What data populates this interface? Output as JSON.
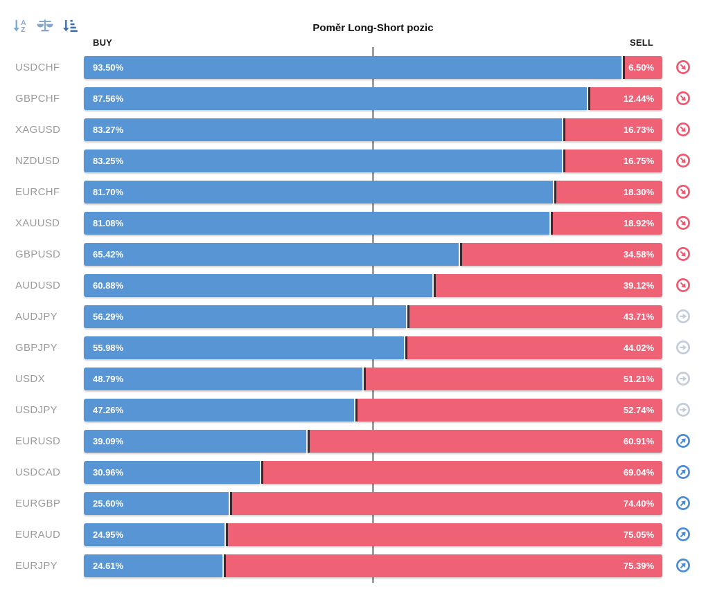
{
  "title": "Poměr Long-Short pozic",
  "columns": {
    "buy": "BUY",
    "sell": "SELL"
  },
  "toolbar": {
    "icons": [
      {
        "name": "sort-alphabetical-icon",
        "state": "inactive"
      },
      {
        "name": "balance-scale-icon",
        "state": "inactive"
      },
      {
        "name": "sort-amount-icon",
        "state": "active"
      }
    ]
  },
  "colors": {
    "buy_bar": "#5795d5",
    "sell_bar": "#ef6276",
    "boundary_marker": "#3a2c31",
    "center_line": "#9e9e9e",
    "pair_label": "#9b9b9b",
    "signal_sell": "#f0586f",
    "signal_neutral": "#c3cdd9",
    "signal_buy": "#4a8bd5"
  },
  "rows": [
    {
      "pair": "USDCHF",
      "buy": 93.5,
      "sell": 6.5,
      "buy_label": "93.50%",
      "sell_label": "6.50%",
      "signal": "sell"
    },
    {
      "pair": "GBPCHF",
      "buy": 87.56,
      "sell": 12.44,
      "buy_label": "87.56%",
      "sell_label": "12.44%",
      "signal": "sell"
    },
    {
      "pair": "XAGUSD",
      "buy": 83.27,
      "sell": 16.73,
      "buy_label": "83.27%",
      "sell_label": "16.73%",
      "signal": "sell"
    },
    {
      "pair": "NZDUSD",
      "buy": 83.25,
      "sell": 16.75,
      "buy_label": "83.25%",
      "sell_label": "16.75%",
      "signal": "sell"
    },
    {
      "pair": "EURCHF",
      "buy": 81.7,
      "sell": 18.3,
      "buy_label": "81.70%",
      "sell_label": "18.30%",
      "signal": "sell"
    },
    {
      "pair": "XAUUSD",
      "buy": 81.08,
      "sell": 18.92,
      "buy_label": "81.08%",
      "sell_label": "18.92%",
      "signal": "sell"
    },
    {
      "pair": "GBPUSD",
      "buy": 65.42,
      "sell": 34.58,
      "buy_label": "65.42%",
      "sell_label": "34.58%",
      "signal": "sell"
    },
    {
      "pair": "AUDUSD",
      "buy": 60.88,
      "sell": 39.12,
      "buy_label": "60.88%",
      "sell_label": "39.12%",
      "signal": "sell"
    },
    {
      "pair": "AUDJPY",
      "buy": 56.29,
      "sell": 43.71,
      "buy_label": "56.29%",
      "sell_label": "43.71%",
      "signal": "neutral"
    },
    {
      "pair": "GBPJPY",
      "buy": 55.98,
      "sell": 44.02,
      "buy_label": "55.98%",
      "sell_label": "44.02%",
      "signal": "neutral"
    },
    {
      "pair": "USDX",
      "buy": 48.79,
      "sell": 51.21,
      "buy_label": "48.79%",
      "sell_label": "51.21%",
      "signal": "neutral"
    },
    {
      "pair": "USDJPY",
      "buy": 47.26,
      "sell": 52.74,
      "buy_label": "47.26%",
      "sell_label": "52.74%",
      "signal": "neutral"
    },
    {
      "pair": "EURUSD",
      "buy": 39.09,
      "sell": 60.91,
      "buy_label": "39.09%",
      "sell_label": "60.91%",
      "signal": "buy"
    },
    {
      "pair": "USDCAD",
      "buy": 30.96,
      "sell": 69.04,
      "buy_label": "30.96%",
      "sell_label": "69.04%",
      "signal": "buy"
    },
    {
      "pair": "EURGBP",
      "buy": 25.6,
      "sell": 74.4,
      "buy_label": "25.60%",
      "sell_label": "74.40%",
      "signal": "buy"
    },
    {
      "pair": "EURAUD",
      "buy": 24.95,
      "sell": 75.05,
      "buy_label": "24.95%",
      "sell_label": "75.05%",
      "signal": "buy"
    },
    {
      "pair": "EURJPY",
      "buy": 24.61,
      "sell": 75.39,
      "buy_label": "24.61%",
      "sell_label": "75.39%",
      "signal": "buy"
    }
  ],
  "chart_data": {
    "type": "bar",
    "orientation": "horizontal-stacked",
    "title": "Poměr Long-Short pozic",
    "categories": [
      "USDCHF",
      "GBPCHF",
      "XAGUSD",
      "NZDUSD",
      "EURCHF",
      "XAUUSD",
      "GBPUSD",
      "AUDUSD",
      "AUDJPY",
      "GBPJPY",
      "USDX",
      "USDJPY",
      "EURUSD",
      "USDCAD",
      "EURGBP",
      "EURAUD",
      "EURJPY"
    ],
    "series": [
      {
        "name": "BUY",
        "color": "#5795d5",
        "values": [
          93.5,
          87.56,
          83.27,
          83.25,
          81.7,
          81.08,
          65.42,
          60.88,
          56.29,
          55.98,
          48.79,
          47.26,
          39.09,
          30.96,
          25.6,
          24.95,
          24.61
        ]
      },
      {
        "name": "SELL",
        "color": "#ef6276",
        "values": [
          6.5,
          12.44,
          16.73,
          16.75,
          18.3,
          18.92,
          34.58,
          39.12,
          43.71,
          44.02,
          51.21,
          52.74,
          60.91,
          69.04,
          74.4,
          75.05,
          75.39
        ]
      }
    ],
    "signals": [
      "sell",
      "sell",
      "sell",
      "sell",
      "sell",
      "sell",
      "sell",
      "sell",
      "neutral",
      "neutral",
      "neutral",
      "neutral",
      "buy",
      "buy",
      "buy",
      "buy",
      "buy"
    ],
    "xlim": [
      0,
      100
    ],
    "center_reference_line": 50,
    "grid": false,
    "legend_position": "top (BUY left, SELL right)",
    "value_labels": "inside bars, percent with 2 decimals"
  }
}
